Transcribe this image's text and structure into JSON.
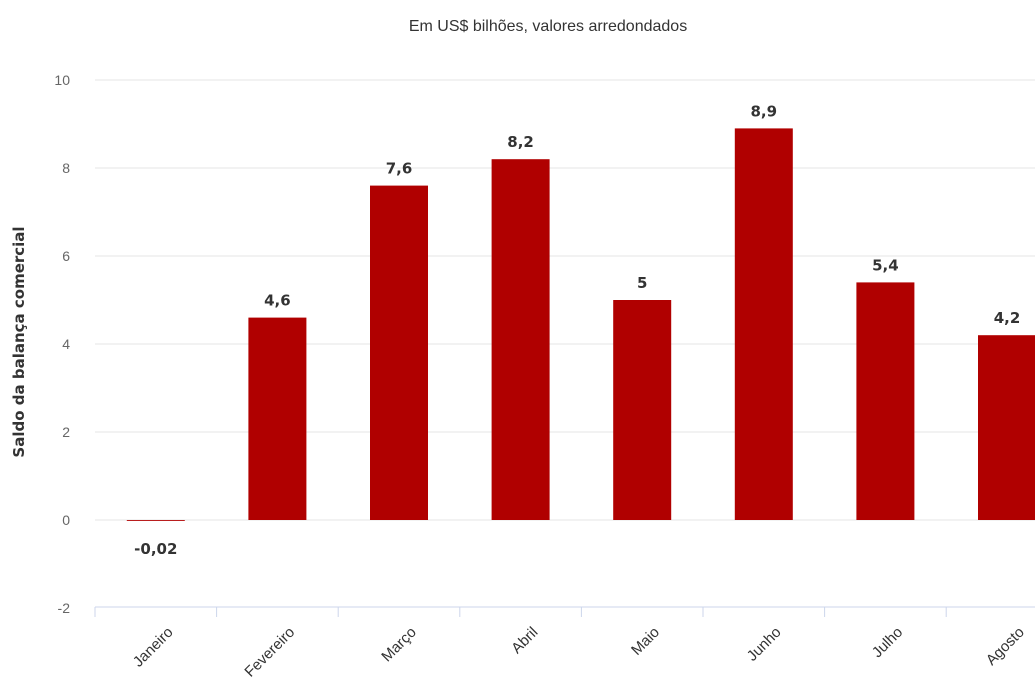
{
  "chart_data": {
    "type": "bar",
    "title": "",
    "subtitle": "Em US$ bilhões, valores arredondados",
    "xlabel": "",
    "ylabel": "Saldo da balança comercial",
    "categories": [
      "Janeiro",
      "Fevereiro",
      "Março",
      "Abril",
      "Maio",
      "Junho",
      "Julho",
      "Agosto"
    ],
    "values": [
      -0.02,
      4.6,
      7.6,
      8.2,
      5,
      8.9,
      5.4,
      4.2
    ],
    "data_labels": [
      "-0,02",
      "4,6",
      "7,6",
      "8,2",
      "5",
      "8,9",
      "5,4",
      "4,2"
    ],
    "ylim": [
      -2,
      10
    ],
    "yticks": [
      -2,
      0,
      2,
      4,
      6,
      8,
      10
    ],
    "ytick_labels": [
      "-2",
      "0",
      "2",
      "4",
      "6",
      "8",
      "10"
    ],
    "bar_color": "#b00000",
    "grid": true,
    "legend": "none"
  }
}
